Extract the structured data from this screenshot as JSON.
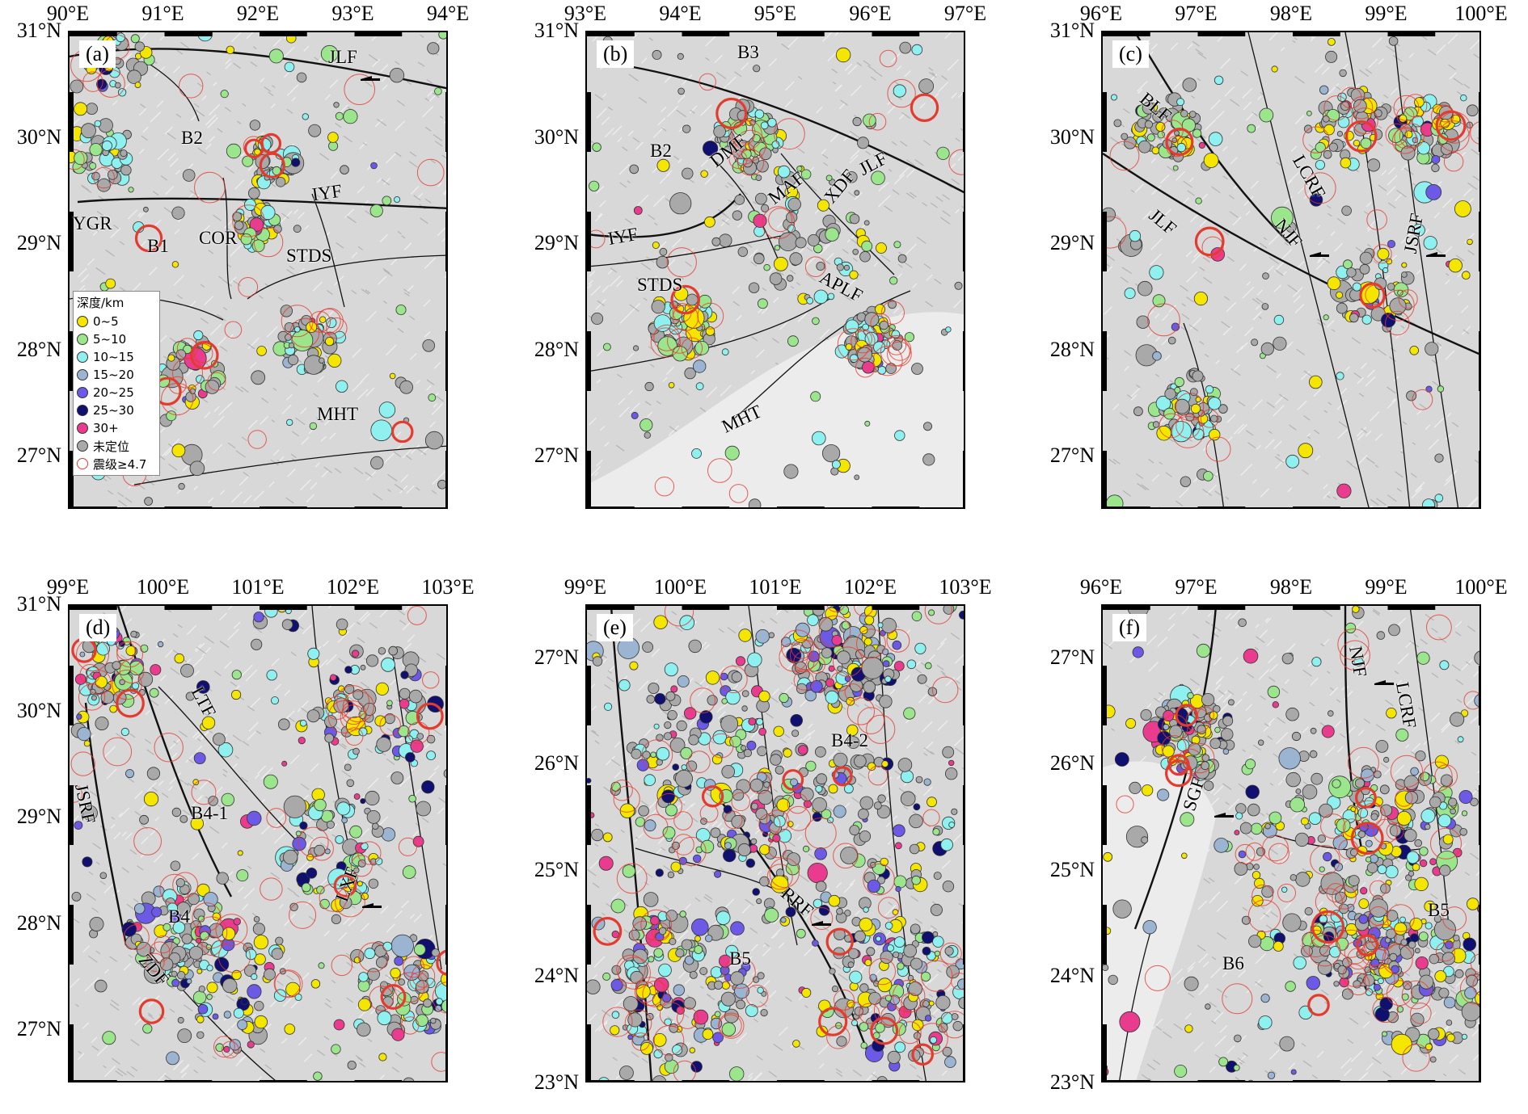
{
  "figure": {
    "panels": [
      {
        "id": "a",
        "letter": "(a)",
        "lon_labels": [
          "90°E",
          "91°E",
          "92°E",
          "93°E",
          "94°E"
        ],
        "lat_labels": [
          "31°N",
          "30°N",
          "29°N",
          "28°N",
          "27°N"
        ],
        "lon_range": [
          90,
          94
        ],
        "lat_range": [
          26.5,
          31
        ],
        "annotations": [
          "JLF",
          "B2",
          "IYF",
          "YGR",
          "B1",
          "COR",
          "STDS",
          "MHT"
        ],
        "fault_arrows": [
          "JLF"
        ]
      },
      {
        "id": "b",
        "letter": "(b)",
        "lon_labels": [
          "93°E",
          "94°E",
          "95°E",
          "96°E",
          "97°E"
        ],
        "lat_labels": [
          "31°N",
          "30°N",
          "29°N",
          "28°N",
          "27°N"
        ],
        "lon_range": [
          93,
          97
        ],
        "lat_range": [
          26.5,
          31
        ],
        "annotations": [
          "B3",
          "B2",
          "DMF",
          "JLF",
          "MAF",
          "XDF",
          "IYF",
          "STDS",
          "APLF",
          "MHT"
        ],
        "fault_arrows": []
      },
      {
        "id": "c",
        "letter": "(c)",
        "lon_labels": [
          "96°E",
          "97°E",
          "98°E",
          "99°E",
          "100°E"
        ],
        "lat_labels": [
          "31°N",
          "30°N",
          "29°N",
          "28°N",
          "27°N"
        ],
        "lon_range": [
          96,
          100
        ],
        "lat_range": [
          26.5,
          31
        ],
        "annotations": [
          "BLF",
          "LCRF",
          "JLF",
          "NJF",
          "JSRF"
        ],
        "fault_arrows": [
          "JSRF",
          "NJF"
        ]
      },
      {
        "id": "d",
        "letter": "(d)",
        "lon_labels": [
          "99°E",
          "100°E",
          "101°E",
          "102°E",
          "103°E"
        ],
        "lat_labels": [
          "31°N",
          "30°N",
          "29°N",
          "28°N",
          "27°N"
        ],
        "lon_range": [
          99,
          103
        ],
        "lat_range": [
          26.5,
          31
        ],
        "annotations": [
          "LTF",
          "JSRF",
          "B4-1",
          "LXF",
          "B4",
          "ZDF"
        ],
        "fault_arrows": [
          "LXF"
        ]
      },
      {
        "id": "e",
        "letter": "(e)",
        "lon_labels": [
          "99°E",
          "100°E",
          "101°E",
          "102°E",
          "103°E"
        ],
        "lat_labels": [
          "27°N",
          "26°N",
          "25°N",
          "24°N",
          "23°N"
        ],
        "lon_range": [
          99,
          103
        ],
        "lat_range": [
          23,
          27.5
        ],
        "annotations": [
          "B4-2",
          "RRF",
          "B5"
        ],
        "fault_arrows": [
          "RRF"
        ]
      },
      {
        "id": "f",
        "letter": "(f)",
        "lon_labels": [
          "96°E",
          "97°E",
          "98°E",
          "99°E",
          "100°E"
        ],
        "lat_labels": [
          "27°N",
          "26°N",
          "25°N",
          "24°N",
          "23°N"
        ],
        "lon_range": [
          96,
          100
        ],
        "lat_range": [
          23,
          27.5
        ],
        "annotations": [
          "NJF",
          "LCRF",
          "SGF",
          "B5",
          "B6"
        ],
        "fault_arrows": [
          "NJF",
          "SGF"
        ]
      }
    ]
  },
  "legend": {
    "title": "深度/km",
    "items": [
      {
        "label": "0~5",
        "color": "#f5e600"
      },
      {
        "label": "5~10",
        "color": "#9be68c"
      },
      {
        "label": "10~15",
        "color": "#8ef0ef"
      },
      {
        "label": "15~20",
        "color": "#9bb4d2"
      },
      {
        "label": "20~25",
        "color": "#6c5ae6"
      },
      {
        "label": "25~30",
        "color": "#101070"
      },
      {
        "label": "30+",
        "color": "#ea3c8e"
      },
      {
        "label": "未定位",
        "color": "#a9a9a9"
      },
      {
        "label": "震级≥4.7",
        "color": "#e33b2e",
        "style": "ring"
      }
    ]
  },
  "colors": {
    "terrain": "#d8d8d8",
    "fault_line": "#111111",
    "large_quake_ring": "#e33b2e"
  },
  "icons": {
    "depth_marker": "filled-circle",
    "large_quake_marker": "red-ring",
    "fault_motion": "half-arrow"
  }
}
